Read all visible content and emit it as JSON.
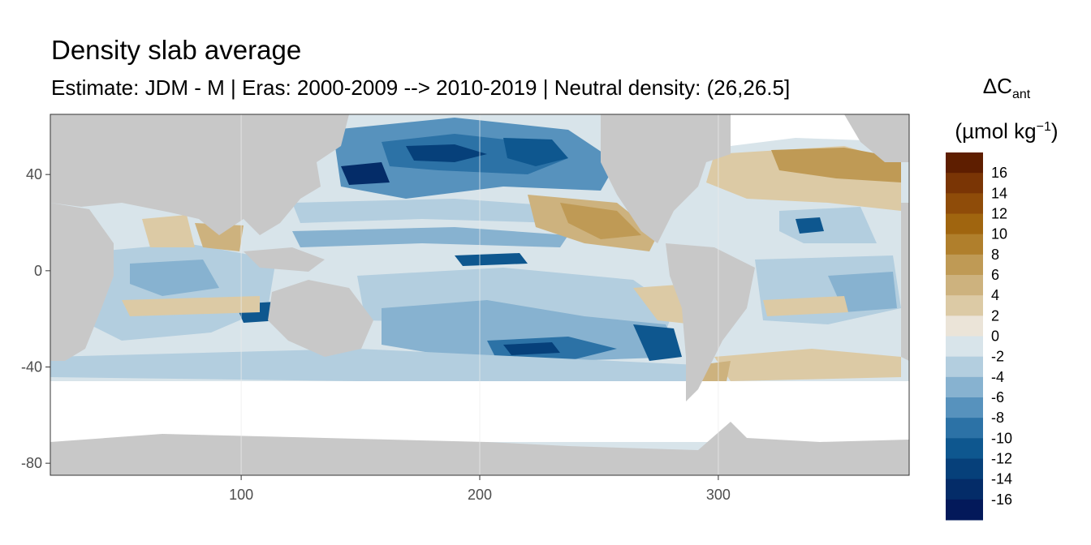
{
  "title": "Density slab average",
  "subtitle": "Estimate: JDM - M | Eras: 2000-2009 --> 2010-2019 | Neutral density: (26,26.5]",
  "map": {
    "x_range": [
      20,
      380
    ],
    "y_range": [
      -85,
      65
    ],
    "x_ticks": [
      "100",
      "200",
      "300"
    ],
    "x_tick_values": [
      100,
      200,
      300
    ],
    "y_ticks": [
      "40",
      "0",
      "-40",
      "-80"
    ],
    "y_tick_values": [
      40,
      0,
      -40,
      -80
    ],
    "land_color": "#c8c8c8",
    "no_data_color": "#ffffff",
    "grid_color": "#ebebeb"
  },
  "legend": {
    "title_symbol": "ΔC",
    "title_subscript": "ant",
    "title_unit_prefix": "(µmol kg",
    "title_unit_sup": "−1",
    "title_unit_suffix": ")",
    "labels": [
      "16",
      "14",
      "12",
      "10",
      "8",
      "6",
      "4",
      "2",
      "0",
      "-2",
      "-4",
      "-6",
      "-8",
      "-10",
      "-12",
      "-14",
      "-16"
    ],
    "colors": [
      "#5e1e00",
      "#7a3505",
      "#8f4c09",
      "#a0650f",
      "#b07f2c",
      "#bf9a55",
      "#cdb27e",
      "#dccaa5",
      "#ebe4d8",
      "#d8e4ea",
      "#b3cedf",
      "#87b2d0",
      "#5792bd",
      "#2c72a6",
      "#0e578f",
      "#06407a",
      "#042c68",
      "#03195a"
    ]
  }
}
